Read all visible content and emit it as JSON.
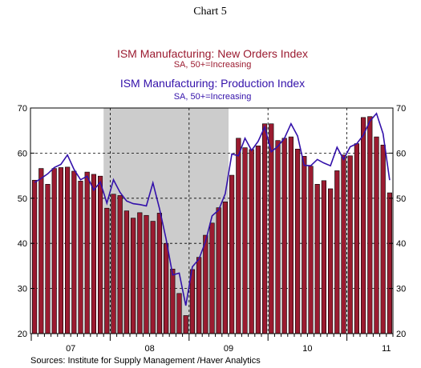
{
  "page_title": "Chart 5",
  "source": "Sources:  Institute for Supply Management /Haver Analytics",
  "chart_data": {
    "type": "bar",
    "series": [
      {
        "name": "ISM Manufacturing: New Orders Index",
        "subtitle": "SA, 50+=Increasing",
        "mark": "bar",
        "color": "#9b1b30",
        "values": [
          54.0,
          56.6,
          53.1,
          56.6,
          56.8,
          56.9,
          56.0,
          53.8,
          55.8,
          55.3,
          54.9,
          47.8,
          50.9,
          50.6,
          47.2,
          45.6,
          46.8,
          46.2,
          44.9,
          46.7,
          40.0,
          34.3,
          28.9,
          24.0,
          34.2,
          36.9,
          41.8,
          44.5,
          47.9,
          49.2,
          55.1,
          63.3,
          61.2,
          60.8,
          61.6,
          66.5,
          66.5,
          62.8,
          63.3,
          63.6,
          60.9,
          59.3,
          57.1,
          53.1,
          53.9,
          52.1,
          56.1,
          59.6,
          59.4,
          62.1,
          67.9,
          68.1,
          63.6,
          61.8,
          51.2
        ]
      },
      {
        "name": "ISM Manufacturing: Production Index",
        "subtitle": "SA, 50+=Increasing",
        "mark": "line",
        "color": "#3311aa",
        "values": [
          53.5,
          54.4,
          55.4,
          56.8,
          57.5,
          59.6,
          56.4,
          54.1,
          54.9,
          51.8,
          53.6,
          48.9,
          54.1,
          51.3,
          49.4,
          48.8,
          48.6,
          48.3,
          53.4,
          47.7,
          41.0,
          33.0,
          33.4,
          26.2,
          34.8,
          36.5,
          40.4,
          46.1,
          47.4,
          51.0,
          59.8,
          59.4,
          63.3,
          60.6,
          62.6,
          65.8,
          60.3,
          61.5,
          63.3,
          66.5,
          63.8,
          57.3,
          57.2,
          58.6,
          57.8,
          57.2,
          61.3,
          58.6,
          61.4,
          62.1,
          64.0,
          67.1,
          68.8,
          64.3,
          54.0
        ]
      }
    ],
    "start_month": "2007-01",
    "x_tick_labels": [
      "07",
      "08",
      "09",
      "10",
      "11"
    ],
    "y_ticks": [
      20,
      30,
      40,
      50,
      60,
      70
    ],
    "ylim": [
      20,
      70
    ],
    "shaded_period": {
      "start": "2007-12",
      "end": "2009-06",
      "color": "#cccccc"
    },
    "gridlines": "dashed horizontal at each y tick; dashed vertical at each year boundary",
    "y_axis_labels_both_sides": true
  }
}
